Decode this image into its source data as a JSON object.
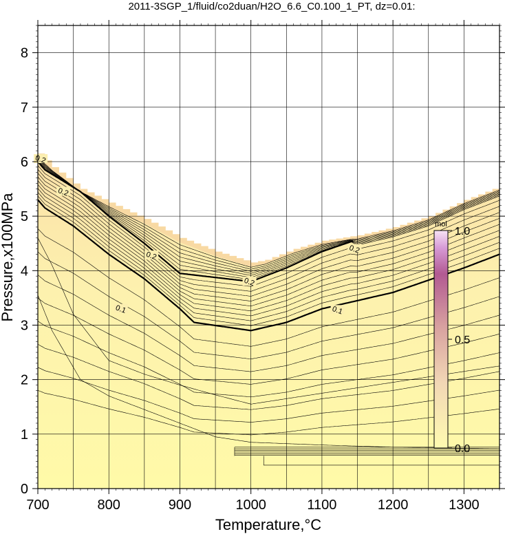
{
  "chart_data": {
    "type": "contour",
    "title": "2011-3SGP_1/fluid/co2duan/H2O_6.6_C0.100_1_PT, dz=0.01:",
    "xlabel": "Temperature,°C",
    "ylabel": "Pressure,x100MPa",
    "xlim": [
      700,
      1350
    ],
    "ylim": [
      0,
      8.5
    ],
    "x_ticks": [
      "700",
      "800",
      "900",
      "1000",
      "1100",
      "1200",
      "1300"
    ],
    "y_ticks": [
      "0",
      "1",
      "2",
      "3",
      "4",
      "5",
      "6",
      "7",
      "8"
    ],
    "grid": true,
    "contour_interval": 0.01,
    "boundary": {
      "x": [
        700,
        720,
        760,
        800,
        850,
        900,
        950,
        1000,
        1020,
        1060,
        1100,
        1150,
        1200,
        1250,
        1300,
        1350
      ],
      "y": [
        6.15,
        5.9,
        5.5,
        5.25,
        4.95,
        4.6,
        4.35,
        4.15,
        4.2,
        4.4,
        4.55,
        4.65,
        4.8,
        5.0,
        5.3,
        5.55
      ]
    },
    "contours": [
      {
        "level": "0.1",
        "x": [
          700,
          710,
          750,
          800,
          850,
          900,
          920,
          1000,
          1050,
          1100,
          1200,
          1300,
          1350
        ],
        "y": [
          5.3,
          5.15,
          4.82,
          4.3,
          3.85,
          3.3,
          3.05,
          2.9,
          3.05,
          3.3,
          3.6,
          4.05,
          4.3
        ]
      },
      {
        "level": "0.2",
        "x": [
          700,
          710,
          760,
          800,
          850,
          900,
          1000,
          1050,
          1100,
          1145
        ],
        "y": [
          6.0,
          5.85,
          5.45,
          5.0,
          4.5,
          3.95,
          3.8,
          4.05,
          4.35,
          4.55
        ]
      }
    ],
    "contour_labels": [
      {
        "text": "0.2",
        "x": 736,
        "y": 5.45
      },
      {
        "text": "0.2",
        "x": 860,
        "y": 4.28
      },
      {
        "text": "0.2",
        "x": 998,
        "y": 3.8
      },
      {
        "text": "0.2",
        "x": 1146,
        "y": 4.4
      },
      {
        "text": "0.1",
        "x": 817,
        "y": 3.3
      },
      {
        "text": "0.1",
        "x": 1122,
        "y": 3.28
      },
      {
        "text": "0.2",
        "x": 704,
        "y": 6.05
      }
    ],
    "colorbar": {
      "unit": "mol",
      "ticks": [
        "0.0",
        "0.5",
        "1.0"
      ],
      "range": [
        0,
        1
      ],
      "colors": [
        "#fffbb0",
        "#e8b49a",
        "#a3246a",
        "#ffffff"
      ]
    },
    "colors": {
      "background_fill": "#fff9a8",
      "band_fill": "#f8d9a3",
      "contour_line": "#000000"
    }
  }
}
